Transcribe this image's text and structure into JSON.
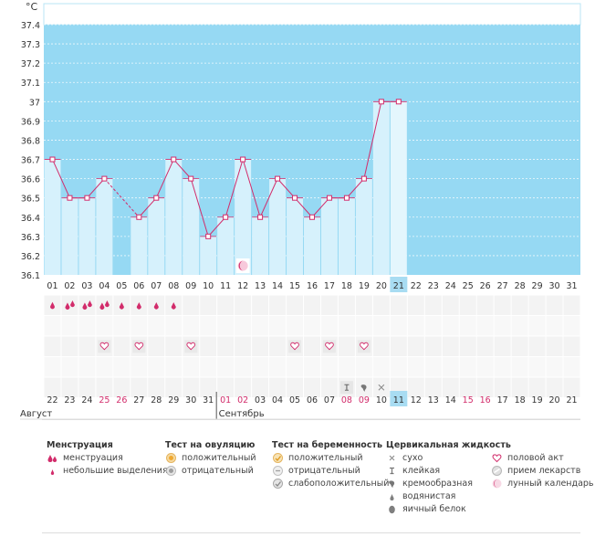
{
  "chart_data": {
    "type": "line",
    "unit_label": "°C",
    "ylim": [
      36.1,
      37.4
    ],
    "y_ticks": [
      "36.1",
      "36.2",
      "36.3",
      "36.4",
      "36.5",
      "36.6",
      "36.7",
      "36.8",
      "36.9",
      "37",
      "37.1",
      "37.2",
      "37.3",
      "37.4"
    ],
    "cycle_days": [
      "01",
      "02",
      "03",
      "04",
      "05",
      "06",
      "07",
      "08",
      "09",
      "10",
      "11",
      "12",
      "13",
      "14",
      "15",
      "16",
      "17",
      "18",
      "19",
      "20",
      "21",
      "22",
      "23",
      "24",
      "25",
      "26",
      "27",
      "28",
      "29",
      "30",
      "31"
    ],
    "series": [
      {
        "values": [
          36.7,
          36.5,
          36.5,
          36.6,
          null,
          36.4,
          36.5,
          36.7,
          36.6,
          36.3,
          36.4,
          36.7,
          36.4,
          36.6,
          36.5,
          36.4,
          36.5,
          36.5,
          36.6,
          37.0,
          37.0,
          null,
          null,
          null,
          null,
          null,
          null,
          null,
          null,
          null,
          null
        ],
        "interpolated_days": [
          "05"
        ],
        "highlight_day": "21"
      }
    ],
    "lunar_day": "12",
    "calendar_dates": [
      "22",
      "23",
      "24",
      "25",
      "26",
      "27",
      "28",
      "29",
      "30",
      "31",
      "01",
      "02",
      "03",
      "04",
      "05",
      "06",
      "07",
      "08",
      "09",
      "10",
      "11",
      "12",
      "13",
      "14",
      "15",
      "16",
      "17",
      "18",
      "19",
      "20",
      "21"
    ],
    "red_dates_index": [
      3,
      4,
      10,
      11,
      17,
      18,
      24,
      25
    ],
    "months": [
      {
        "label": "Август",
        "start_index": 0
      },
      {
        "label": "Сентябрь",
        "start_index": 10
      }
    ],
    "markers": {
      "menstruation_heavy": [
        "01",
        "02",
        "03",
        "04"
      ],
      "menstruation_light": [
        "05",
        "06",
        "07",
        "08"
      ],
      "intercourse": [
        "04",
        "06",
        "09",
        "15",
        "17",
        "19"
      ],
      "fluid_sticky": [
        "18"
      ],
      "fluid_creamy": [
        "19"
      ],
      "fluid_dry": [
        "20"
      ]
    }
  },
  "legend": {
    "menstruation": {
      "title": "Менструация",
      "items": [
        "менструация",
        "небольшие выделения"
      ]
    },
    "ovulation": {
      "title": "Тест на овуляцию",
      "items": [
        "положительный",
        "отрицательный"
      ]
    },
    "pregnancy": {
      "title": "Тест на беременность",
      "items": [
        "положительный",
        "отрицательный",
        "слабоположительный"
      ]
    },
    "fluid": {
      "title": "Цервикальная жидкость",
      "items": [
        "сухо",
        "клейкая",
        "кремообразная",
        "водянистая",
        "яичный белок"
      ]
    },
    "other": {
      "items": [
        "половой акт",
        "прием лекарств",
        "лунный календарь"
      ]
    }
  },
  "colors": {
    "plot_bg": "#96d9f3",
    "bar_fill": "#d6f1fc",
    "line": "#d22c6b",
    "marker_fill": "#ffffff",
    "red_text": "#d22c6b",
    "highlight_cell": "#a8dcf2"
  }
}
